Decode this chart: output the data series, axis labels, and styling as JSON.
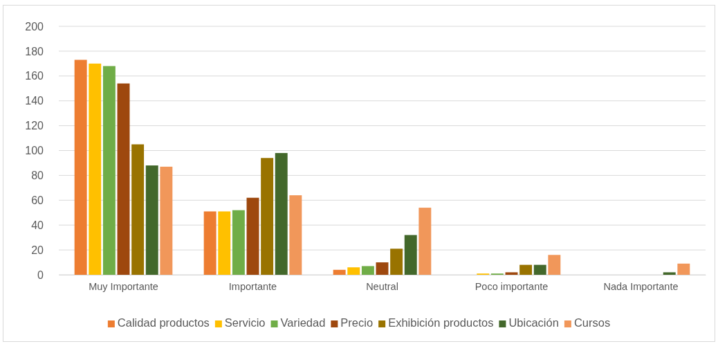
{
  "chart_data": {
    "type": "bar",
    "categories": [
      "Muy Importante",
      "Importante",
      "Neutral",
      "Poco importante",
      "Nada Importante"
    ],
    "series": [
      {
        "name": "Calidad productos",
        "color": "#ed7d31",
        "values": [
          173,
          51,
          4,
          0,
          0
        ]
      },
      {
        "name": "Servicio",
        "color": "#ffc000",
        "values": [
          170,
          51,
          6,
          1,
          0
        ]
      },
      {
        "name": "Variedad",
        "color": "#70ad47",
        "values": [
          168,
          52,
          7,
          1,
          0
        ]
      },
      {
        "name": "Precio",
        "color": "#9e480e",
        "values": [
          154,
          62,
          10,
          2,
          0
        ]
      },
      {
        "name": "Exhibición productos",
        "color": "#997300",
        "values": [
          105,
          94,
          21,
          8,
          0
        ]
      },
      {
        "name": "Ubicación",
        "color": "#43682b",
        "values": [
          88,
          98,
          32,
          8,
          2
        ]
      },
      {
        "name": "Cursos",
        "color": "#f1975a",
        "values": [
          87,
          64,
          54,
          16,
          9
        ]
      }
    ],
    "ylim": [
      0,
      200
    ],
    "yticks": [
      0,
      20,
      40,
      60,
      80,
      100,
      120,
      140,
      160,
      180,
      200
    ],
    "grid": "y",
    "legend": "bottom"
  }
}
